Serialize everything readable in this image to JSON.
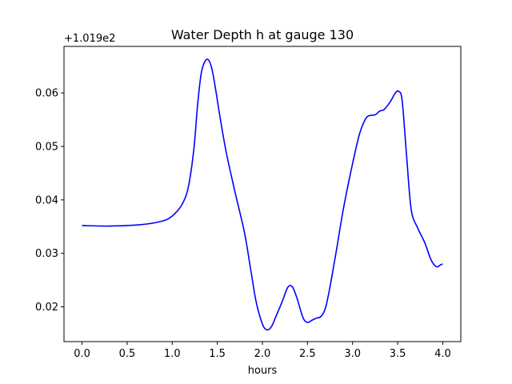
{
  "chart_data": {
    "type": "line",
    "title": "Water Depth h at gauge 130",
    "xlabel": "hours",
    "ylabel": "",
    "y_offset_label": "+1.019e2",
    "xlim": [
      -0.2,
      4.2
    ],
    "ylim": [
      0.0135,
      0.0687
    ],
    "xticks": [
      0.0,
      0.5,
      1.0,
      1.5,
      2.0,
      2.5,
      3.0,
      3.5,
      4.0
    ],
    "xtick_labels": [
      "0.0",
      "0.5",
      "1.0",
      "1.5",
      "2.0",
      "2.5",
      "3.0",
      "3.5",
      "4.0"
    ],
    "yticks": [
      0.02,
      0.03,
      0.04,
      0.05,
      0.06
    ],
    "ytick_labels": [
      "0.02",
      "0.03",
      "0.04",
      "0.05",
      "0.06"
    ],
    "grid": false,
    "series": [
      {
        "color": "#0000ff",
        "x": [
          0.0,
          0.3,
          0.6,
          0.8,
          0.95,
          1.05,
          1.12,
          1.18,
          1.24,
          1.28,
          1.32,
          1.36,
          1.4,
          1.44,
          1.48,
          1.53,
          1.6,
          1.7,
          1.8,
          1.87,
          1.93,
          2.0,
          2.05,
          2.1,
          2.15,
          2.22,
          2.28,
          2.33,
          2.38,
          2.45,
          2.5,
          2.55,
          2.6,
          2.65,
          2.7,
          2.75,
          2.82,
          2.9,
          3.0,
          3.08,
          3.15,
          3.2,
          3.25,
          3.3,
          3.35,
          3.42,
          3.47,
          3.51,
          3.55,
          3.6,
          3.65,
          3.72,
          3.8,
          3.87,
          3.93,
          3.98,
          4.0
        ],
        "y": [
          0.0352,
          0.0351,
          0.0353,
          0.0357,
          0.0364,
          0.0378,
          0.0395,
          0.0425,
          0.0495,
          0.0575,
          0.0635,
          0.0658,
          0.0662,
          0.0645,
          0.0608,
          0.0555,
          0.0488,
          0.0412,
          0.034,
          0.027,
          0.021,
          0.0168,
          0.0157,
          0.0163,
          0.0182,
          0.021,
          0.0236,
          0.0238,
          0.0218,
          0.018,
          0.0171,
          0.0175,
          0.0179,
          0.0182,
          0.0198,
          0.0238,
          0.0305,
          0.0385,
          0.0468,
          0.0525,
          0.0553,
          0.0558,
          0.0559,
          0.0566,
          0.0569,
          0.0584,
          0.0599,
          0.0603,
          0.0585,
          0.048,
          0.0382,
          0.0348,
          0.032,
          0.0288,
          0.0275,
          0.0279,
          0.028
        ]
      }
    ]
  }
}
